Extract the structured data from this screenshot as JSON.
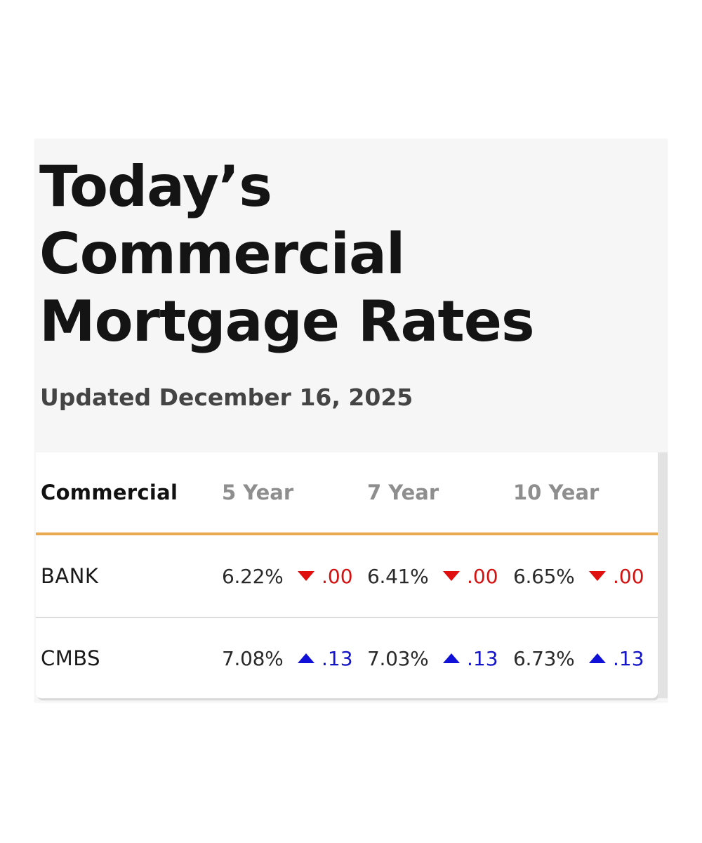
{
  "header": {
    "title_lines": [
      "Today’s",
      "Commercial",
      "Mortgage Rates"
    ],
    "updated": "Updated December 16, 2025"
  },
  "table": {
    "columns": [
      "Commercial",
      "5 Year",
      "7 Year",
      "10 Year"
    ],
    "rows": [
      {
        "label": "BANK",
        "cells": [
          {
            "rate": "6.22%",
            "direction": "down",
            "change": ".00"
          },
          {
            "rate": "6.41%",
            "direction": "down",
            "change": ".00"
          },
          {
            "rate": "6.65%",
            "direction": "down",
            "change": ".00"
          }
        ]
      },
      {
        "label": "CMBS",
        "cells": [
          {
            "rate": "7.08%",
            "direction": "up",
            "change": ".13"
          },
          {
            "rate": "7.03%",
            "direction": "up",
            "change": ".13"
          },
          {
            "rate": "6.73%",
            "direction": "up",
            "change": ".13"
          }
        ]
      }
    ]
  },
  "colors": {
    "accent_border": "#e8a94f",
    "down": "#d41010",
    "up": "#1414c8",
    "panel_bg": "#f6f6f6"
  },
  "icons": {
    "down": "triangle-down-icon",
    "up": "triangle-up-icon"
  }
}
